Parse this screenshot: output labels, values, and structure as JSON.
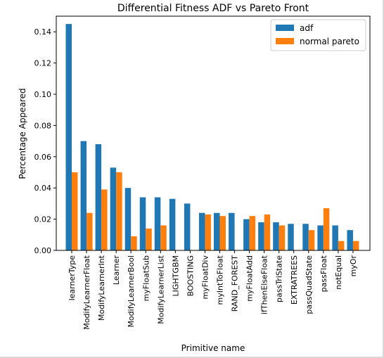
{
  "chart_data": {
    "type": "bar",
    "title": "Differential Fitness ADF vs Pareto Front",
    "xlabel": "Primitive name",
    "ylabel": "Percentage Appeared",
    "ylim": [
      0,
      0.15
    ],
    "yticks": [
      0.0,
      0.02,
      0.04,
      0.06,
      0.08,
      0.1,
      0.12,
      0.14
    ],
    "ytick_labels": [
      "0.00",
      "0.02",
      "0.04",
      "0.06",
      "0.08",
      "0.10",
      "0.12",
      "0.14"
    ],
    "legend_position": "top-right",
    "grid": false,
    "categories": [
      "learnerType",
      "ModifyLearnerFloat",
      "ModifyLearnerInt",
      "Learner",
      "ModifyLearnerBool",
      "myFloatSub",
      "ModifyLearnerList",
      "LIGHTGBM",
      "BOOSTING",
      "myFloatDiv",
      "myIntToFloat",
      "RAND_FOREST",
      "myFloatAdd",
      "ifThenElseFloat",
      "passTriState",
      "EXTRATREES",
      "passQuadState",
      "passFloat",
      "notEqual",
      "myOr"
    ],
    "series": [
      {
        "name": "adf",
        "color": "#1f77b4",
        "values": [
          0.145,
          0.07,
          0.068,
          0.053,
          0.04,
          0.034,
          0.034,
          0.033,
          0.03,
          0.024,
          0.024,
          0.024,
          0.02,
          0.018,
          0.018,
          0.017,
          0.017,
          0.016,
          0.016,
          0.013
        ]
      },
      {
        "name": "normal pareto",
        "color": "#ff7f0e",
        "values": [
          0.05,
          0.024,
          0.039,
          0.05,
          0.009,
          0.014,
          0.016,
          0.0,
          0.0,
          0.023,
          0.022,
          0.0,
          0.022,
          0.023,
          0.016,
          0.0,
          0.013,
          0.027,
          0.006,
          0.006
        ]
      }
    ]
  }
}
